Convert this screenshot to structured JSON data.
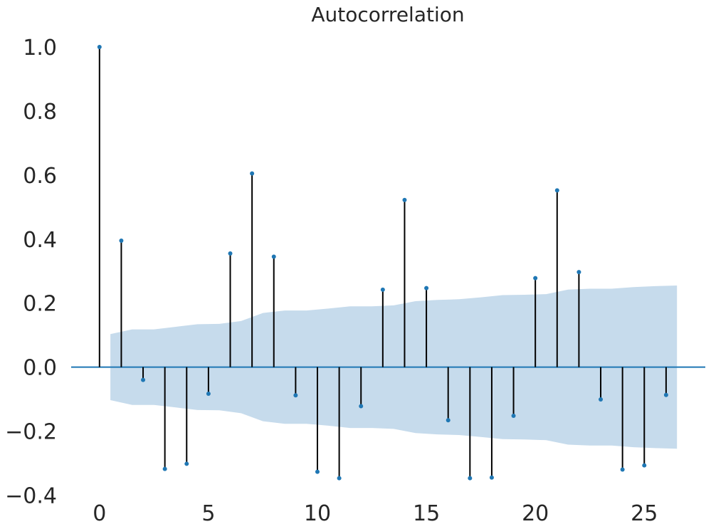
{
  "chart_data": {
    "type": "stem",
    "title": "Autocorrelation",
    "xlabel": "",
    "ylabel": "",
    "xlim": [
      -1.3,
      27.8
    ],
    "ylim": [
      -0.41,
      1.04
    ],
    "x_ticks": [
      0,
      5,
      10,
      15,
      20,
      25
    ],
    "y_ticks": [
      1.0,
      0.8,
      0.6,
      0.4,
      0.2,
      0.0,
      -0.2,
      -0.4
    ],
    "y_tick_labels": [
      "1.0",
      "0.8",
      "0.6",
      "0.4",
      "0.2",
      "0.0",
      "−0.2",
      "−0.4"
    ],
    "grid": false,
    "lags": [
      0,
      1,
      2,
      3,
      4,
      5,
      6,
      7,
      8,
      9,
      10,
      11,
      12,
      13,
      14,
      15,
      16,
      17,
      18,
      19,
      20,
      21,
      22,
      23,
      24,
      25,
      26
    ],
    "values": [
      1.0,
      0.395,
      -0.04,
      -0.318,
      -0.302,
      -0.083,
      0.355,
      0.605,
      0.345,
      -0.088,
      -0.327,
      -0.347,
      -0.122,
      0.242,
      0.522,
      0.247,
      -0.166,
      -0.347,
      -0.345,
      -0.152,
      0.278,
      0.552,
      0.297,
      -0.101,
      -0.32,
      -0.307,
      -0.087
    ],
    "confidence_band": {
      "x": [
        0.5,
        1.5,
        2.5,
        3.5,
        4.5,
        5.5,
        6.5,
        7.5,
        8.5,
        9.5,
        10.5,
        11.5,
        12.5,
        13.5,
        14.5,
        15.5,
        16.5,
        17.5,
        18.5,
        19.5,
        20.5,
        21.5,
        22.5,
        23.5,
        24.5,
        25.5,
        26.5
      ],
      "upper": [
        0.103,
        0.118,
        0.118,
        0.126,
        0.134,
        0.135,
        0.144,
        0.169,
        0.177,
        0.177,
        0.183,
        0.19,
        0.19,
        0.193,
        0.206,
        0.21,
        0.212,
        0.218,
        0.225,
        0.226,
        0.228,
        0.242,
        0.245,
        0.245,
        0.25,
        0.253,
        0.255
      ],
      "lower": [
        -0.103,
        -0.118,
        -0.118,
        -0.126,
        -0.134,
        -0.135,
        -0.144,
        -0.169,
        -0.177,
        -0.177,
        -0.183,
        -0.19,
        -0.19,
        -0.193,
        -0.206,
        -0.21,
        -0.212,
        -0.218,
        -0.225,
        -0.226,
        -0.228,
        -0.242,
        -0.245,
        -0.245,
        -0.25,
        -0.253,
        -0.255
      ]
    },
    "colors": {
      "marker": "#1f77b4",
      "stem": "#000000",
      "zero_line": "#1f77b4",
      "band": "#c6dbec",
      "text": "#262626"
    }
  }
}
